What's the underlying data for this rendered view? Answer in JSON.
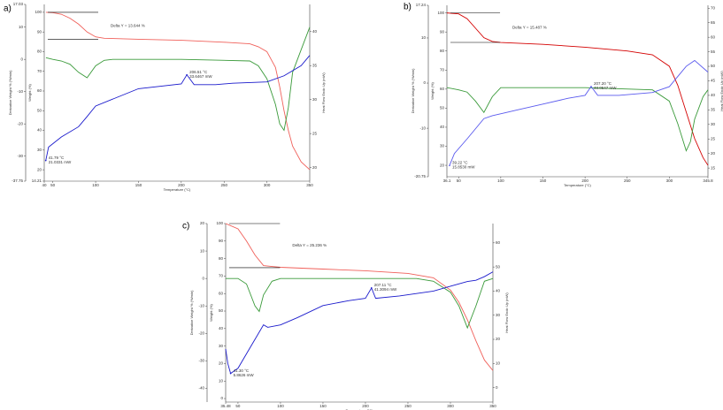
{
  "chart_data": [
    {
      "type": "line",
      "panel": "a)",
      "x_label": "Temperature (°C)",
      "y_label": "Weight (%)",
      "y2_label": "Heat Flow Endo Up (mW)",
      "y3_label": "Derivative Weight % (%/min)",
      "xlim": [
        40,
        350
      ],
      "xticks": [
        40,
        50,
        100,
        150,
        200,
        250,
        300,
        350
      ],
      "ylim": [
        14.21,
        104
      ],
      "yticks": [
        100,
        90,
        80,
        70,
        60,
        50,
        40,
        30,
        20,
        14.21
      ],
      "y2lim": [
        18,
        44
      ],
      "y2ticks": [
        20,
        25,
        30,
        35,
        40
      ],
      "y3lim": [
        -37.75,
        17.03
      ],
      "y3ticks": [
        17.03,
        10,
        0,
        -10,
        -20,
        -30,
        -37.75
      ],
      "series": [
        {
          "color": "#f0605a",
          "axis": "y",
          "x": [
            42,
            50,
            60,
            70,
            80,
            90,
            100,
            110,
            150,
            200,
            250,
            280,
            290,
            300,
            310,
            315,
            320,
            325,
            330,
            340,
            350
          ],
          "values": [
            100,
            99.8,
            99,
            97,
            94,
            90,
            87.5,
            86.8,
            86.3,
            85.8,
            84.8,
            84,
            82.5,
            80,
            72,
            62,
            50,
            40,
            32,
            24,
            20
          ]
        },
        {
          "color": "#3a9a3a",
          "axis": "y3",
          "x": [
            42,
            50,
            60,
            70,
            80,
            90,
            100,
            110,
            120,
            200,
            280,
            290,
            300,
            310,
            315,
            320,
            325,
            330,
            340,
            350
          ],
          "values": [
            0.5,
            0,
            -0.5,
            -1.5,
            -4,
            -5.7,
            -2,
            -0.3,
            0,
            0,
            -0.5,
            -2,
            -6,
            -14,
            -20,
            -22,
            -15,
            -4,
            3,
            10
          ]
        },
        {
          "color": "#1a1acc",
          "axis": "y2",
          "x": [
            41.79,
            45,
            60,
            80,
            90,
            100,
            150,
            200,
            206.51,
            215,
            240,
            260,
            280,
            300,
            320,
            340,
            350
          ],
          "values": [
            21.0331,
            23,
            24.5,
            26,
            27.5,
            29.05,
            31.6,
            32.3,
            33.6467,
            32.2,
            32.2,
            32.4,
            32.5,
            32.6,
            33.5,
            35,
            36.5
          ]
        }
      ],
      "peaks": [
        {
          "x": 206.51,
          "value": 33.6467,
          "x_label": "206.51 °C",
          "value_label": "33.6467 mW"
        },
        {
          "x": 41.79,
          "value": 21.0331,
          "x_label": "41.79 °C",
          "value_label": "21.0331 mW"
        }
      ],
      "delta_y": {
        "label": "Delta Y = 13.644 %",
        "value": 13.644,
        "from": 100
      }
    },
    {
      "type": "line",
      "panel": "b)",
      "x_label": "Temperature (°C)",
      "y_label": "Weight (%)",
      "y2_label": "Heat Flow Endo Up (mW)",
      "y3_label": "Derivative Weight % (%/min)",
      "xlim": [
        36.1,
        345.8
      ],
      "xticks": [
        36.1,
        50,
        100,
        150,
        200,
        250,
        300,
        345.8
      ],
      "ylim": [
        14,
        104
      ],
      "yticks": [
        100,
        90,
        80,
        70,
        60,
        50,
        40,
        30,
        20
      ],
      "y2lim": [
        12,
        71
      ],
      "y2ticks": [
        15,
        20,
        25,
        30,
        35,
        40,
        45,
        50,
        55,
        60,
        65,
        70
      ],
      "y3lim": [
        -20.75,
        17.24
      ],
      "y3ticks": [
        17.24,
        10,
        0,
        -10,
        -20.75
      ],
      "series": [
        {
          "color": "#d40000",
          "axis": "y",
          "x": [
            36.1,
            50,
            60,
            70,
            80,
            90,
            100,
            150,
            200,
            250,
            280,
            300,
            310,
            320,
            330,
            340,
            345.8
          ],
          "values": [
            100,
            99.5,
            97,
            92,
            87,
            85,
            84.5,
            83.5,
            82,
            80,
            78,
            72,
            62,
            48,
            34,
            24,
            20
          ]
        },
        {
          "color": "#3a9a3a",
          "axis": "y3",
          "x": [
            36.1,
            50,
            60,
            70,
            80,
            90,
            100,
            200,
            280,
            300,
            310,
            320,
            325,
            330,
            340,
            345.8
          ],
          "values": [
            -1,
            -1.5,
            -2,
            -4,
            -6.5,
            -3,
            -1,
            -1,
            -1.5,
            -4,
            -9,
            -15,
            -13,
            -8,
            -3,
            -1.5
          ]
        },
        {
          "color": "#5a5aee",
          "axis": "y2",
          "x": [
            39.22,
            45,
            60,
            80,
            90,
            120,
            150,
            180,
            200,
            207.2,
            215,
            240,
            260,
            280,
            300,
            320,
            330,
            345.8
          ],
          "values": [
            15.853,
            20,
            25,
            32,
            33,
            35,
            37,
            39,
            40,
            43.0547,
            40,
            40,
            40.5,
            41,
            43,
            50,
            52,
            48
          ]
        }
      ],
      "peaks": [
        {
          "x": 207.2,
          "value": 43.0547,
          "x_label": "207.20 °C",
          "value_label": "43.0547 mW"
        },
        {
          "x": 39.22,
          "value": 15.853,
          "x_label": "39.22 °C",
          "value_label": "15.8530 mW"
        }
      ],
      "delta_y": {
        "label": "Delta Y = 15.487 %",
        "value": 15.487,
        "from": 100
      }
    },
    {
      "type": "line",
      "panel": "c)",
      "x_label": "Temperature (°C)",
      "y_label": "Weight (%)",
      "y2_label": "Heat Flow Endo Up (mW)",
      "y3_label": "Derivative Weight % (%/min)",
      "xlim": [
        35.48,
        350
      ],
      "xticks": [
        35.48,
        50,
        100,
        150,
        200,
        250,
        300,
        350
      ],
      "ylim": [
        -2,
        100
      ],
      "yticks": [
        100,
        90,
        80,
        70,
        60,
        50,
        40,
        30,
        20,
        10,
        0
      ],
      "y2lim": [
        -6,
        68
      ],
      "y2ticks": [
        0,
        10,
        20,
        30,
        40,
        50,
        60
      ],
      "y3lim": [
        -45,
        20
      ],
      "y3ticks": [
        20,
        10,
        0,
        -10,
        -20,
        -30,
        -40
      ],
      "series": [
        {
          "color": "#f0605a",
          "axis": "y",
          "x": [
            35.48,
            50,
            60,
            70,
            80,
            90,
            100,
            150,
            200,
            250,
            280,
            300,
            310,
            320,
            330,
            340,
            350
          ],
          "values": [
            100,
            97,
            90,
            82,
            76,
            75.5,
            75,
            74,
            73,
            71.5,
            69,
            62,
            55,
            45,
            33,
            22,
            16
          ]
        },
        {
          "color": "#3a9a3a",
          "axis": "y3",
          "x": [
            35.48,
            50,
            60,
            70,
            75,
            80,
            90,
            100,
            260,
            280,
            300,
            310,
            320,
            330,
            340,
            350
          ],
          "values": [
            0,
            0,
            -2,
            -10,
            -12,
            -6,
            -1,
            0,
            0,
            -1,
            -5,
            -10,
            -18,
            -10,
            -1,
            0
          ]
        },
        {
          "color": "#1a1acc",
          "axis": "y2",
          "x": [
            35.48,
            38,
            41.3,
            50,
            60,
            70,
            80,
            85,
            100,
            120,
            150,
            180,
            200,
            207.11,
            212,
            240,
            260,
            280,
            300,
            320,
            330,
            340,
            350
          ],
          "values": [
            16,
            10,
            5.8626,
            8,
            14,
            20,
            26,
            25,
            26,
            29,
            34,
            36,
            37,
            41.3094,
            37,
            38,
            39,
            40,
            42,
            44,
            44.5,
            46,
            48
          ]
        }
      ],
      "peaks": [
        {
          "x": 207.11,
          "value": 41.3094,
          "x_label": "207.11 °C",
          "value_label": "41.3094 mW"
        },
        {
          "x": 41.3,
          "value": 5.8626,
          "x_label": "41.30 °C",
          "value_label": "5.8626 mW"
        }
      ],
      "delta_y": {
        "label": "Delta Y = 25.236 %",
        "value": 25.236,
        "from": 100
      }
    }
  ]
}
